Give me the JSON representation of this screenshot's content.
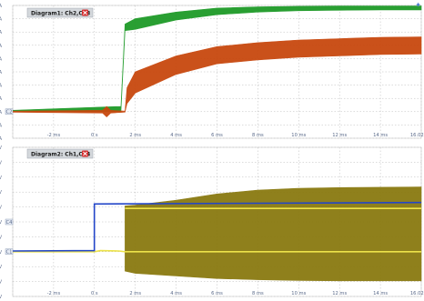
{
  "corner_icon": "pin-icon",
  "colors": {
    "panel_bg": "#ffffff",
    "grid": "#b8b8b8",
    "tab_bg": "#d4d8dc",
    "close": "#d32f2f",
    "green": "#1e9a28",
    "orange": "#c8480e",
    "blue": "#2346c8",
    "olive": "#8a7a10",
    "yellow": "#ede34a"
  },
  "chart_data": [
    {
      "type": "line",
      "title": "Diagram1: Ch2,Ch3",
      "close_icon": "close-icon",
      "x_ticks": [
        "-2 ms",
        "0 s",
        "2 ms",
        "4 ms",
        "6 ms",
        "8 ms",
        "10 ms",
        "12 ms",
        "14 ms",
        "16.02 ms"
      ],
      "y_ticks": [
        "4 A",
        "3.5 A",
        "3 A",
        "2.5 A",
        "2 A",
        "1.5 A",
        "1 A",
        "500 mA",
        "0 A",
        "-500 mA",
        "-1 A"
      ],
      "xlim": [
        -4,
        16.02
      ],
      "ylim": [
        -1,
        4
      ],
      "grid": true,
      "markers": [
        {
          "label": "C2",
          "y": 0
        }
      ],
      "series": [
        {
          "color": "#1e9a28",
          "band": {
            "x": [
              -4,
              1.3,
              1.5,
              2,
              4,
              6,
              8,
              10,
              12,
              14,
              16.02
            ],
            "upper": [
              0.05,
              0.2,
              3.3,
              3.5,
              3.75,
              3.9,
              3.95,
              3.97,
              3.98,
              3.98,
              3.98
            ],
            "lower": [
              0.0,
              0.0,
              3.05,
              3.1,
              3.45,
              3.65,
              3.75,
              3.8,
              3.82,
              3.83,
              3.83
            ]
          }
        },
        {
          "color": "#c8480e",
          "band": {
            "x": [
              -4,
              0.4,
              0.6,
              0.8,
              1.5,
              1.6,
              2,
              4,
              6,
              8,
              10,
              12,
              14,
              16.02
            ],
            "upper": [
              0.02,
              0.05,
              0.2,
              0.05,
              0.02,
              0.9,
              1.5,
              2.1,
              2.45,
              2.6,
              2.7,
              2.75,
              2.8,
              2.82
            ],
            "lower": [
              -0.02,
              -0.05,
              -0.2,
              -0.05,
              -0.02,
              0.3,
              0.7,
              1.4,
              1.8,
              1.95,
              2.05,
              2.1,
              2.15,
              2.17
            ]
          }
        }
      ]
    },
    {
      "type": "line",
      "title": "Diagram2: Ch1,Ch4",
      "close_icon": "close-icon",
      "x_ticks": [
        "-2 ms",
        "0 s",
        "2 ms",
        "4 ms",
        "6 ms",
        "8 ms",
        "10 ms",
        "12 ms",
        "14 ms",
        "16.02 ms"
      ],
      "y_ticks": [
        "28 V",
        "24 V",
        "20 V",
        "16 V",
        "12 V",
        "8 V",
        "4 V",
        "0 V",
        "-4 V",
        "-8 V",
        "-12 V"
      ],
      "xlim": [
        -4,
        16.02
      ],
      "ylim": [
        -12,
        28
      ],
      "grid": true,
      "markers": [
        {
          "label": "C1",
          "y": 0
        },
        {
          "label": "C4",
          "y": 8
        }
      ],
      "series": [
        {
          "color": "#8a7a10",
          "band": {
            "x": [
              1.5,
              2,
              4,
              6,
              8,
              10,
              12,
              14,
              16.02
            ],
            "upper": [
              12.3,
              12.5,
              13.8,
              15.5,
              16.5,
              17.0,
              17.2,
              17.3,
              17.4
            ],
            "lower": [
              -5.2,
              -5.8,
              -6.5,
              -7.2,
              -7.5,
              -7.7,
              -7.8,
              -7.8,
              -7.8
            ]
          }
        },
        {
          "color": "#ede34a",
          "line": {
            "x": [
              -4,
              0,
              0.3,
              1.2,
              1.5,
              16.02
            ],
            "y": [
              0,
              0,
              0.3,
              0.2,
              0,
              0
            ]
          },
          "line2": {
            "x": [
              1.5,
              16.02
            ],
            "y": [
              11.6,
              11.6
            ]
          }
        },
        {
          "color": "#2346c8",
          "line": {
            "x": [
              -4,
              0,
              0,
              16.02
            ],
            "y": [
              0.2,
              0.3,
              12.8,
              13.2
            ]
          }
        }
      ]
    }
  ]
}
